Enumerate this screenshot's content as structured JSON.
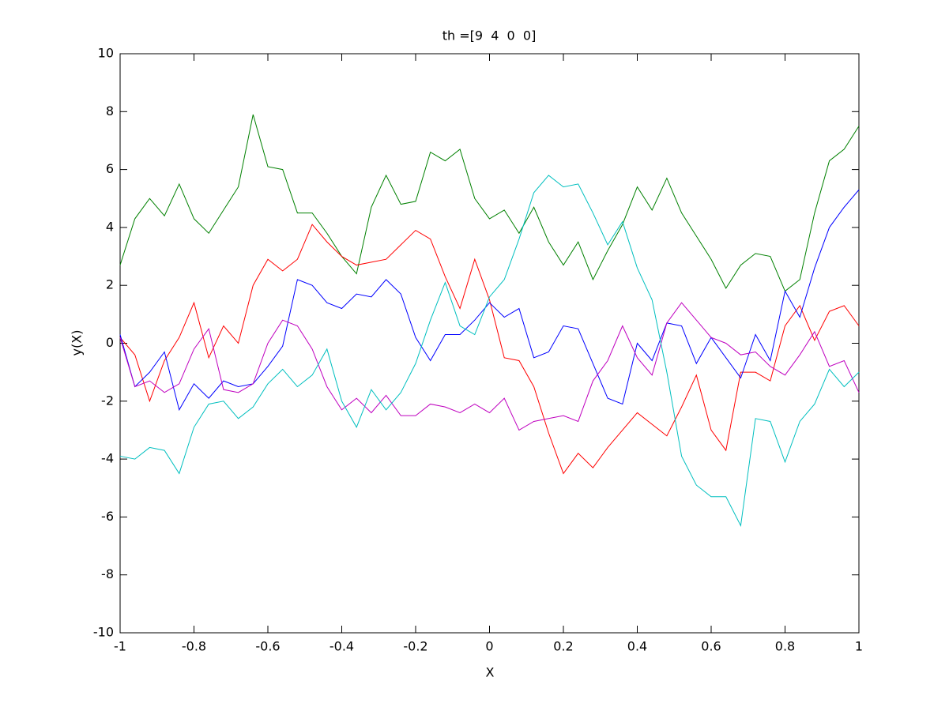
{
  "chart_data": {
    "type": "line",
    "title": "th =[9  4  0  0]",
    "x_label": "X",
    "y_label": "y(X)",
    "x": [
      -1,
      -0.96,
      -0.92,
      -0.88,
      -0.84,
      -0.8,
      -0.76,
      -0.72,
      -0.68,
      -0.64,
      -0.6,
      -0.56,
      -0.52,
      -0.48,
      -0.44,
      -0.4,
      -0.36,
      -0.32,
      -0.28,
      -0.24,
      -0.2,
      -0.16,
      -0.12,
      -0.08,
      -0.04,
      0,
      0.04,
      0.08,
      0.12,
      0.16,
      0.2,
      0.24,
      0.28,
      0.32,
      0.36,
      0.4,
      0.44,
      0.48,
      0.52,
      0.56,
      0.6,
      0.64,
      0.68,
      0.72,
      0.76,
      0.8,
      0.84,
      0.88,
      0.92,
      0.96,
      1
    ],
    "series": [
      {
        "color": "#008000",
        "values": [
          2.7,
          4.3,
          5.0,
          4.4,
          5.5,
          4.3,
          3.8,
          4.6,
          5.4,
          7.9,
          6.1,
          6.0,
          4.5,
          4.5,
          3.8,
          3.0,
          2.4,
          4.7,
          5.8,
          4.8,
          4.9,
          6.6,
          6.3,
          6.7,
          5.0,
          4.3,
          4.6,
          3.8,
          4.7,
          3.5,
          2.7,
          3.5,
          2.2,
          3.2,
          4.1,
          5.4,
          4.6,
          5.7,
          4.5,
          3.7,
          2.9,
          1.9,
          2.7,
          3.1,
          3.0,
          1.8,
          2.2,
          4.5,
          6.3,
          6.7,
          7.5
        ]
      },
      {
        "color": "#ff0000",
        "values": [
          0.2,
          -0.4,
          -2.0,
          -0.6,
          0.2,
          1.4,
          -0.5,
          0.6,
          0.0,
          2.0,
          2.9,
          2.5,
          2.9,
          4.1,
          3.5,
          3.0,
          2.7,
          2.8,
          2.9,
          3.4,
          3.9,
          3.6,
          2.3,
          1.2,
          2.9,
          1.5,
          -0.5,
          -0.6,
          -1.5,
          -3.1,
          -4.5,
          -3.8,
          -4.3,
          -3.6,
          -3.0,
          -2.4,
          -2.8,
          -3.2,
          -2.2,
          -1.1,
          -3.0,
          -3.7,
          -1.0,
          -1.0,
          -1.3,
          0.6,
          1.3,
          0.1,
          1.1,
          1.3,
          0.6
        ]
      },
      {
        "color": "#0000ff",
        "values": [
          0.3,
          -1.5,
          -1.0,
          -0.3,
          -2.3,
          -1.4,
          -1.9,
          -1.3,
          -1.5,
          -1.4,
          -0.8,
          -0.1,
          2.2,
          2.0,
          1.4,
          1.2,
          1.7,
          1.6,
          2.2,
          1.7,
          0.2,
          -0.6,
          0.3,
          0.3,
          0.8,
          1.4,
          0.9,
          1.2,
          -0.5,
          -0.3,
          0.6,
          0.5,
          -0.7,
          -1.9,
          -2.1,
          0.0,
          -0.6,
          0.7,
          0.6,
          -0.7,
          0.2,
          -0.5,
          -1.2,
          0.3,
          -0.6,
          1.8,
          0.9,
          2.6,
          4.0,
          4.7,
          5.3
        ]
      },
      {
        "color": "#bf00bf",
        "values": [
          0.2,
          -1.5,
          -1.3,
          -1.7,
          -1.4,
          -0.2,
          0.5,
          -1.6,
          -1.7,
          -1.4,
          0.0,
          0.8,
          0.6,
          -0.2,
          -1.5,
          -2.3,
          -1.9,
          -2.4,
          -1.8,
          -2.5,
          -2.5,
          -2.1,
          -2.2,
          -2.4,
          -2.1,
          -2.4,
          -1.9,
          -3.0,
          -2.7,
          -2.6,
          -2.5,
          -2.7,
          -1.3,
          -0.6,
          0.6,
          -0.5,
          -1.1,
          0.7,
          1.4,
          0.8,
          0.2,
          0.0,
          -0.4,
          -0.3,
          -0.8,
          -1.1,
          -0.4,
          0.4,
          -0.8,
          -0.6,
          -1.7
        ]
      },
      {
        "color": "#00bfbf",
        "values": [
          -3.9,
          -4.0,
          -3.6,
          -3.7,
          -4.5,
          -2.9,
          -2.1,
          -2.0,
          -2.6,
          -2.2,
          -1.4,
          -0.9,
          -1.5,
          -1.1,
          -0.2,
          -2.0,
          -2.9,
          -1.6,
          -2.3,
          -1.7,
          -0.7,
          0.8,
          2.1,
          0.6,
          0.3,
          1.6,
          2.2,
          3.6,
          5.2,
          5.8,
          5.4,
          5.5,
          4.5,
          3.4,
          4.2,
          2.6,
          1.5,
          -1.0,
          -3.9,
          -4.9,
          -5.3,
          -5.3,
          -6.3,
          -2.6,
          -2.7,
          -4.1,
          -2.7,
          -2.1,
          -0.9,
          -1.5,
          -1.0
        ]
      }
    ],
    "xlim": [
      -1,
      1
    ],
    "ylim": [
      -10,
      10
    ],
    "xticks": [
      -1,
      -0.8,
      -0.6,
      -0.4,
      -0.2,
      0,
      0.2,
      0.4,
      0.6,
      0.8,
      1
    ],
    "yticks": [
      -10,
      -8,
      -6,
      -4,
      -2,
      0,
      2,
      4,
      6,
      8,
      10
    ],
    "grid": false
  }
}
